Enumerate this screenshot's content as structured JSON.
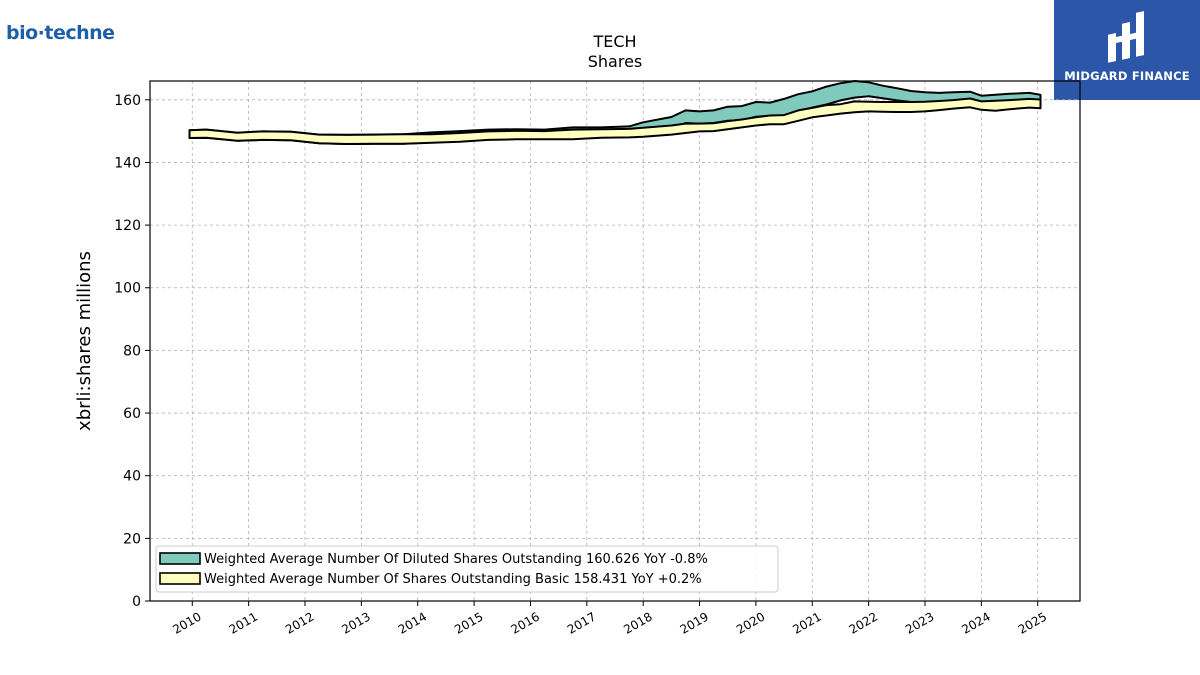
{
  "branding": {
    "company_logo_text": "bio·techne",
    "publisher_logo_text": "MIDGARD FINANCE"
  },
  "chart_data": {
    "type": "area",
    "title": "TECH",
    "subtitle": "Shares",
    "xlabel": "",
    "ylabel": "xbrli:shares millions",
    "ylim": [
      0,
      166
    ],
    "yticks": [
      0,
      20,
      40,
      60,
      80,
      100,
      120,
      140,
      160
    ],
    "xlim": [
      2009.25,
      2025.75
    ],
    "xticks": [
      2010,
      2011,
      2012,
      2013,
      2014,
      2015,
      2016,
      2017,
      2018,
      2019,
      2020,
      2021,
      2022,
      2023,
      2024,
      2025
    ],
    "grid": true,
    "legend_position": "lower-left",
    "series": [
      {
        "name": "Weighted Average Number Of Diluted Shares Outstanding",
        "legend_label": "Weighted Average Number Of Diluted Shares Outstanding  160.626 YoY -0.8%",
        "color": "#7fc9bd",
        "x": [
          2009.95,
          2010.25,
          2010.8,
          2011.25,
          2011.75,
          2012.25,
          2012.75,
          2013.25,
          2013.75,
          2014.25,
          2014.75,
          2015.25,
          2015.75,
          2016.25,
          2016.75,
          2017.25,
          2017.75,
          2018.0,
          2018.5,
          2018.75,
          2019.0,
          2019.25,
          2019.5,
          2019.75,
          2020.0,
          2020.25,
          2020.5,
          2020.75,
          2021.0,
          2021.25,
          2021.5,
          2021.75,
          2022.0,
          2022.25,
          2022.5,
          2022.75,
          2023.0,
          2023.25,
          2023.5,
          2023.8,
          2024.0,
          2024.25,
          2024.5,
          2024.85,
          2025.05
        ],
        "upper": [
          150.3,
          150.5,
          149.5,
          149.9,
          149.8,
          148.9,
          148.8,
          148.9,
          149.0,
          149.6,
          150.0,
          150.5,
          150.6,
          150.5,
          151.2,
          151.2,
          151.5,
          152.8,
          154.5,
          156.6,
          156.3,
          156.6,
          157.8,
          158.0,
          159.3,
          159.1,
          160.3,
          161.8,
          162.7,
          164.2,
          165.3,
          166.0,
          165.6,
          164.5,
          163.7,
          162.8,
          162.4,
          162.2,
          162.4,
          162.6,
          161.3,
          161.6,
          161.9,
          162.2,
          161.6
        ],
        "lower": [
          147.8,
          147.9,
          146.9,
          147.2,
          147.1,
          146.1,
          145.9,
          146.0,
          146.0,
          146.4,
          146.9,
          147.4,
          147.5,
          147.6,
          147.7,
          148.2,
          148.4,
          149.4,
          150.9,
          152.6,
          152.4,
          152.6,
          153.3,
          153.5,
          154.6,
          154.9,
          155.0,
          156.5,
          157.5,
          158.5,
          159.8,
          160.7,
          161.1,
          160.5,
          159.8,
          159.3,
          159.0,
          159.0,
          159.1,
          159.3,
          158.9,
          158.8,
          159.2,
          159.6,
          159.2
        ]
      },
      {
        "name": "Weighted Average Number Of Shares Outstanding Basic",
        "legend_label": "Weighted Average Number Of Shares Outstanding Basic  158.431 YoY +0.2%",
        "color": "#ffffbf",
        "x": [
          2009.95,
          2010.25,
          2010.8,
          2011.25,
          2011.75,
          2012.25,
          2012.75,
          2013.25,
          2013.75,
          2014.25,
          2014.75,
          2015.25,
          2015.75,
          2016.25,
          2016.75,
          2017.25,
          2017.75,
          2018.0,
          2018.5,
          2018.75,
          2019.0,
          2019.25,
          2019.5,
          2019.75,
          2020.0,
          2020.25,
          2020.5,
          2020.75,
          2021.0,
          2021.25,
          2021.5,
          2021.75,
          2022.0,
          2022.25,
          2022.5,
          2022.75,
          2023.0,
          2023.25,
          2023.5,
          2023.8,
          2024.0,
          2024.25,
          2024.5,
          2024.85,
          2025.05
        ],
        "upper": [
          150.3,
          150.5,
          149.5,
          149.9,
          149.8,
          148.9,
          148.8,
          148.9,
          149.0,
          149.0,
          149.4,
          149.9,
          150.1,
          150.0,
          150.5,
          150.6,
          150.7,
          151.1,
          151.8,
          152.4,
          152.4,
          152.5,
          153.2,
          153.7,
          154.4,
          155.0,
          155.1,
          156.6,
          157.4,
          158.3,
          158.6,
          159.5,
          159.4,
          159.3,
          159.3,
          159.3,
          159.4,
          159.6,
          159.9,
          160.4,
          159.5,
          159.7,
          159.9,
          160.3,
          160.1
        ],
        "lower": [
          147.8,
          147.9,
          146.9,
          147.2,
          147.1,
          146.1,
          145.9,
          146.0,
          146.0,
          146.3,
          146.6,
          147.2,
          147.4,
          147.4,
          147.4,
          147.9,
          148.0,
          148.2,
          148.9,
          149.4,
          149.9,
          150.0,
          150.6,
          151.2,
          151.8,
          152.2,
          152.2,
          153.3,
          154.4,
          155.0,
          155.6,
          156.0,
          156.3,
          156.2,
          156.1,
          156.1,
          156.3,
          156.7,
          157.2,
          157.6,
          156.8,
          156.5,
          157.0,
          157.5,
          157.3
        ]
      }
    ]
  }
}
